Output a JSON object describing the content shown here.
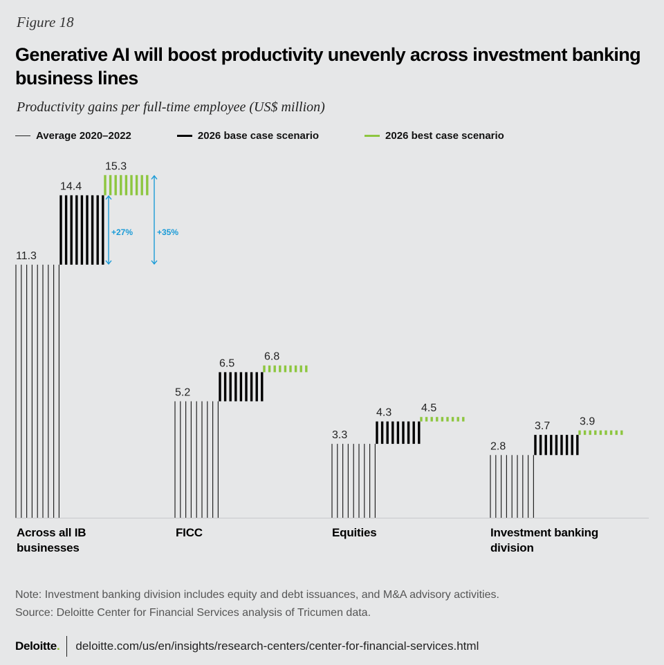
{
  "figure_label": "Figure 18",
  "title": "Generative AI will boost productivity unevenly across investment banking business lines",
  "subtitle": "Productivity gains per full-time employee (US$ million)",
  "legend": [
    {
      "label": "Average 2020–2022",
      "style": "thin",
      "color": "#222222"
    },
    {
      "label": "2026 base case scenario",
      "style": "thick",
      "color": "#000000"
    },
    {
      "label": "2026 best case scenario",
      "style": "green",
      "color": "#8dc63f"
    }
  ],
  "category_labels": {
    "c0": "Across all IB businesses",
    "c1": "FICC",
    "c2": "Equities",
    "c3": "Investment banking division"
  },
  "chart_data": {
    "type": "bar",
    "categories": [
      "Across all IB businesses",
      "FICC",
      "Equities",
      "Investment banking division"
    ],
    "series": [
      {
        "name": "Average 2020–2022",
        "values": [
          11.3,
          5.2,
          3.3,
          2.8
        ]
      },
      {
        "name": "2026 base case scenario",
        "values": [
          14.4,
          6.5,
          4.3,
          3.7
        ]
      },
      {
        "name": "2026 best case scenario",
        "values": [
          15.3,
          6.8,
          4.5,
          3.9
        ]
      }
    ],
    "value_labels": [
      [
        "11.3",
        "14.4",
        "15.3"
      ],
      [
        "5.2",
        "6.5",
        "6.8"
      ],
      [
        "3.3",
        "4.3",
        "4.5"
      ],
      [
        "2.8",
        "3.7",
        "3.9"
      ]
    ],
    "annotations": [
      {
        "text": "+27%",
        "category": "Across all IB businesses",
        "from": 11.3,
        "to": 14.4
      },
      {
        "text": "+35%",
        "category": "Across all IB businesses",
        "from": 11.3,
        "to": 15.3
      }
    ],
    "colors": {
      "average": "#222222",
      "base": "#000000",
      "best": "#8dc63f",
      "annotation": "#1a9bd7"
    },
    "ylim": [
      0,
      16.5
    ],
    "grid": false
  },
  "note": "Note: Investment banking division includes equity and debt issuances, and M&A advisory activities.",
  "source": "Source: Deloitte Center for Financial Services analysis of Tricumen data.",
  "footer": {
    "logo": "Deloitte",
    "logo_dot": ".",
    "url": "deloitte.com/us/en/insights/research-centers/center-for-financial-services.html"
  }
}
